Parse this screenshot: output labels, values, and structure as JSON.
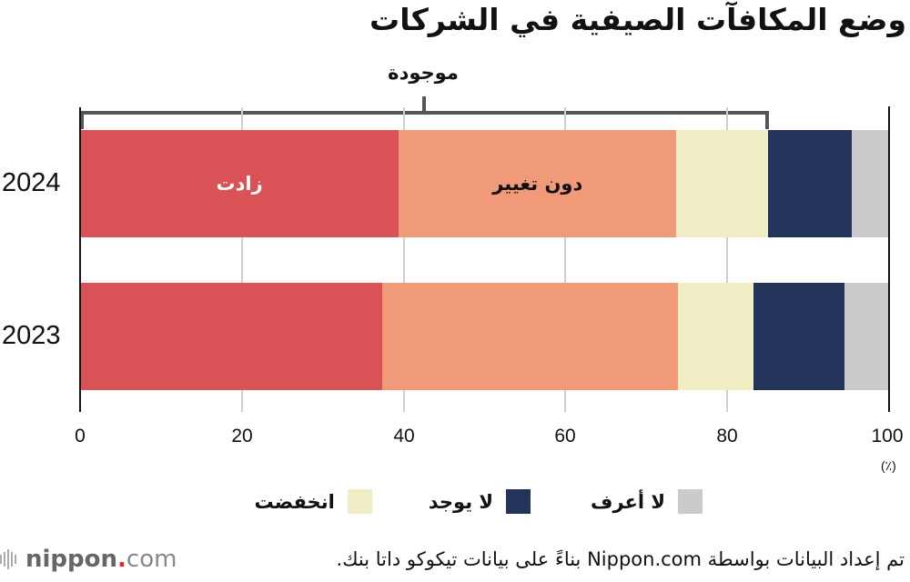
{
  "title": "وضع المكافآت الصيفية في الشركات",
  "bracket": {
    "label": "موجودة",
    "from_pct": 0,
    "to_pct": 85.0
  },
  "colors": {
    "increased": "#d95356",
    "unchanged": "#f09a79",
    "decreased": "#f1eec5",
    "none": "#24335a",
    "dont_know": "#cbcbcb"
  },
  "bars": [
    {
      "year": "2024",
      "segments": [
        39.4,
        34.3,
        11.3,
        10.4,
        4.6
      ]
    },
    {
      "year": "2023",
      "segments": [
        37.3,
        36.6,
        9.3,
        11.3,
        5.5
      ]
    }
  ],
  "in_bar_labels": {
    "increased": "زادت",
    "unchanged": "دون تغيير"
  },
  "axis": {
    "ticks": [
      "0",
      "20",
      "40",
      "60",
      "80",
      "100"
    ],
    "unit": "(٪)"
  },
  "legend": [
    {
      "key": "dont_know",
      "label": "لا أعرف"
    },
    {
      "key": "none",
      "label": "لا يوجد"
    },
    {
      "key": "decreased",
      "label": "انخفضت"
    }
  ],
  "footer": {
    "source": "تم إعداد البيانات بواسطة Nippon.com بناءً على بيانات تيكوكو داتا بنك.",
    "logo_main": "nippon",
    "logo_dot": ".",
    "logo_suffix": "com"
  },
  "chart_data": {
    "type": "bar",
    "orientation": "horizontal",
    "stacked": true,
    "title": "وضع المكافآت الصيفية في الشركات",
    "categories": [
      "2024",
      "2023"
    ],
    "series": [
      {
        "name": "زادت",
        "color": "#d95356",
        "values": [
          39.4,
          37.3
        ]
      },
      {
        "name": "دون تغيير",
        "color": "#f09a79",
        "values": [
          34.3,
          36.6
        ]
      },
      {
        "name": "انخفضت",
        "color": "#f1eec5",
        "values": [
          11.3,
          9.3
        ]
      },
      {
        "name": "لا يوجد",
        "color": "#24335a",
        "values": [
          10.4,
          11.3
        ]
      },
      {
        "name": "لا أعرف",
        "color": "#cbcbcb",
        "values": [
          4.6,
          5.5
        ]
      }
    ],
    "annotations": [
      {
        "text": "موجودة",
        "type": "bracket",
        "range": [
          0,
          85.0
        ],
        "applies_to": "2024"
      }
    ],
    "xlabel": "(٪)",
    "ylabel": "",
    "xlim": [
      0,
      100
    ],
    "xticks": [
      0,
      20,
      40,
      60,
      80,
      100
    ],
    "grid": true,
    "legend_position": "bottom"
  }
}
